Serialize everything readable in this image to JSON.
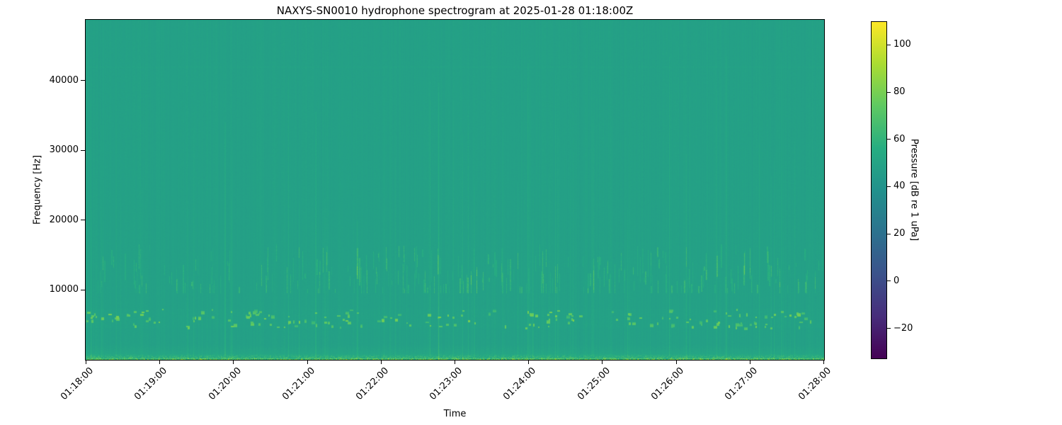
{
  "chart_data": {
    "type": "heatmap",
    "subtype": "spectrogram",
    "title": "NAXYS-SN0010 hydrophone spectrogram at 2025-01-28 01:18:00Z",
    "xlabel": "Time",
    "ylabel": "Frequency [Hz]",
    "x_tick_labels": [
      "01:18:00",
      "01:19:00",
      "01:20:00",
      "01:21:00",
      "01:22:00",
      "01:23:00",
      "01:24:00",
      "01:25:00",
      "01:26:00",
      "01:27:00",
      "01:28:00"
    ],
    "y_tick_labels": [
      "10000",
      "20000",
      "30000",
      "40000"
    ],
    "y_tick_values_hz": [
      10000,
      20000,
      30000,
      40000
    ],
    "y_range_hz": [
      0,
      48700
    ],
    "time_span_minutes": 10,
    "grid": false,
    "legend": "none",
    "colorbar": {
      "label": "Pressure [dB re 1 uPa]",
      "tick_labels": [
        "100",
        "80",
        "60",
        "40",
        "20",
        "0",
        "−20"
      ],
      "tick_values": [
        100,
        80,
        60,
        40,
        20,
        0,
        -20
      ],
      "range_db": [
        -33,
        110
      ],
      "colormap": "viridis",
      "colormap_stops": [
        "#440154",
        "#472d7b",
        "#3b528b",
        "#2c728e",
        "#21918c",
        "#27ad81",
        "#5ec962",
        "#aadc32",
        "#fde725"
      ]
    },
    "content": {
      "description": "Nearly uniform broadband noise floor (~48 dB, teal) across 0-48 kHz with many narrow vertical transient streaks; bright impulsive clicks concentrated near 5-7 kHz; a dense band of short streaks between 10-16.5 kHz; elevated low-frequency energy below ~2 kHz with a near-saturated speckled yellow-green line at the bottom edge; a very faint horizontal line near 42 kHz.",
      "background_db": 48.5,
      "column_noise_db": 1.1,
      "pixel_noise_db": 1.5,
      "seed": 20250128,
      "faint_columns": {
        "count": 130,
        "db_boost": [
          0.6,
          2.2
        ]
      },
      "strong_clicks": {
        "count": 48,
        "db_boost": [
          2,
          7
        ]
      },
      "mid_band": {
        "f_lo_hz": 10000,
        "f_hi_hz": 16500,
        "count": 270,
        "db_boost": [
          4,
          16
        ]
      },
      "click_band": {
        "f_lo_hz": 4600,
        "f_hi_hz": 7300,
        "count": 150,
        "db_level": [
          66,
          82
        ],
        "wash_db": 1.0
      },
      "low_band": {
        "f_hi_hz": 2200,
        "db_boost_max": 6.5
      },
      "bottom_band": {
        "f_hi_hz": 800,
        "db_boost_max": 30
      },
      "faint_line_hz": 42000
    }
  }
}
